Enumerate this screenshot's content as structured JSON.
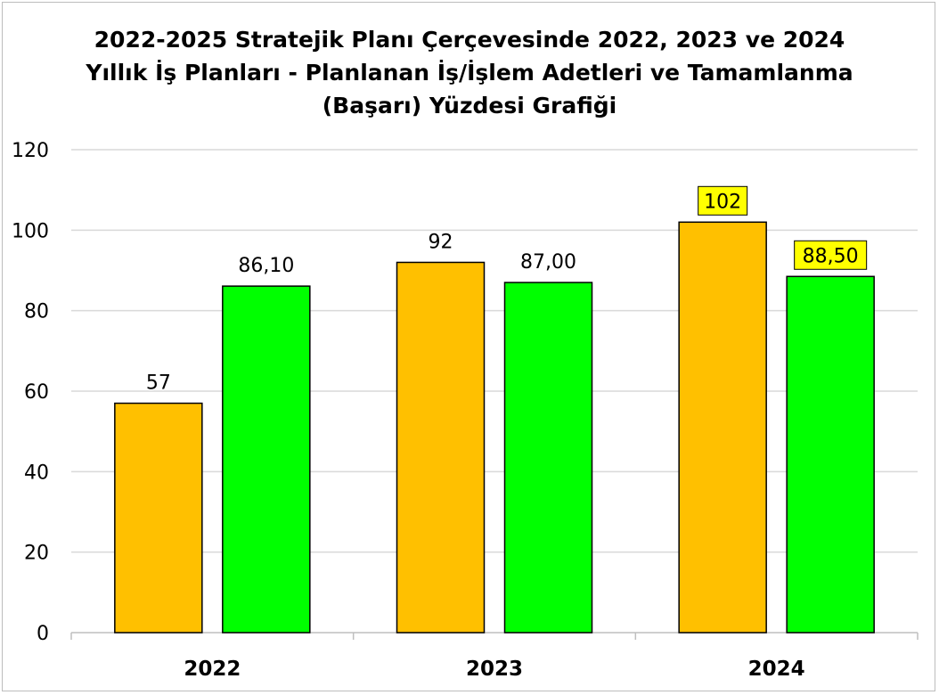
{
  "chart_data": {
    "type": "bar",
    "title_lines": [
      "2022-2025 Stratejik Planı Çerçevesinde 2022, 2023 ve 2024",
      "Yıllık İş Planları - Planlanan İş/İşlem Adetleri ve Tamamlanma",
      "(Başarı) Yüzdesi Grafiği"
    ],
    "categories": [
      "2022",
      "2023",
      "2024"
    ],
    "series": [
      {
        "values": [
          57,
          92,
          102
        ],
        "labels": [
          "57",
          "92",
          "102"
        ],
        "highlighted": [
          false,
          false,
          true
        ],
        "color": "#FFC000"
      },
      {
        "values": [
          86.1,
          87.0,
          88.5
        ],
        "labels": [
          "86,10",
          "87,00",
          "88,50"
        ],
        "highlighted": [
          false,
          false,
          true
        ],
        "color": "#00FF00"
      }
    ],
    "ylim": [
      0,
      120
    ],
    "yticks": [
      0,
      20,
      40,
      60,
      80,
      100,
      120
    ],
    "grid": true,
    "legend": "none",
    "highlight_color": "#FFFF00",
    "bar_border_color": "#000000",
    "grid_color": "#d9d9d9"
  }
}
